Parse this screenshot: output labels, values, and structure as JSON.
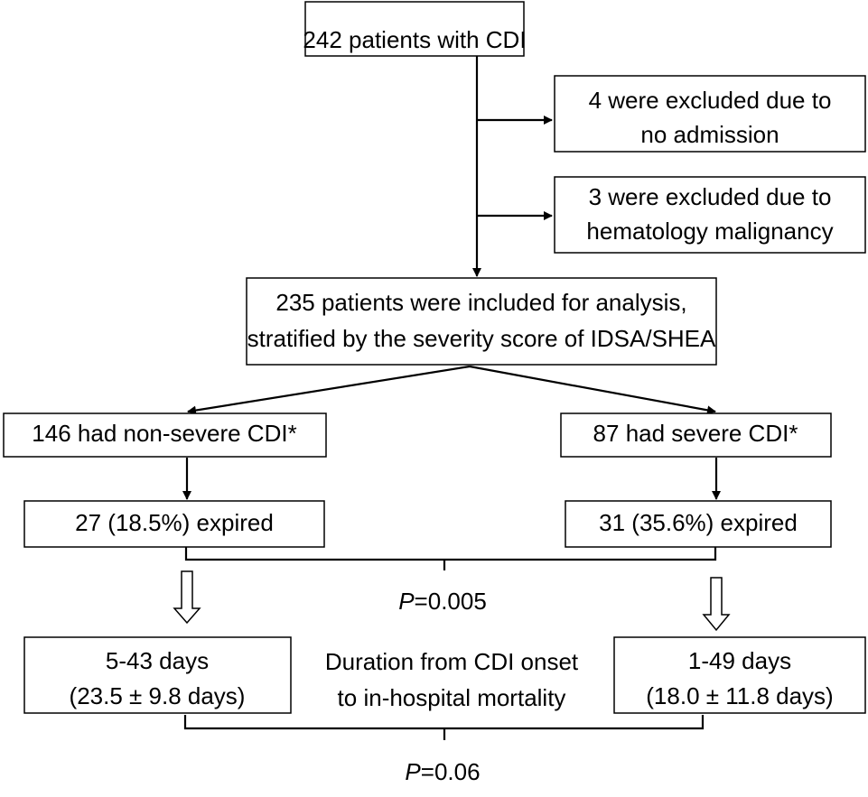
{
  "nodes": {
    "start": {
      "label": "242 patients with CDI"
    },
    "excluded_1": {
      "lines": [
        "4 were excluded due to",
        "no admission"
      ]
    },
    "excluded_2": {
      "lines": [
        "3 were excluded due to",
        "hematology malignancy"
      ]
    },
    "included": {
      "lines": [
        "235 patients were included for analysis,",
        "stratified by the severity score of IDSA/SHEA"
      ]
    },
    "non_severe": {
      "label": "146 had non-severe CDI*"
    },
    "severe": {
      "label": "87 had severe CDI*"
    },
    "non_severe_expired": {
      "label": "27 (18.5%) expired"
    },
    "severe_expired": {
      "label": "31 (35.6%) expired"
    },
    "non_severe_duration": {
      "lines": [
        "5-43 days",
        "(23.5 ± 9.8 days)"
      ]
    },
    "severe_duration": {
      "lines": [
        "1-49 days",
        "(18.0 ± 11.8 days)"
      ]
    }
  },
  "annotations": {
    "mortality_p": {
      "symbol": "P",
      "value": "=0.005"
    },
    "duration_label": {
      "lines": [
        "Duration from CDI onset",
        "to in-hospital mortality"
      ]
    },
    "duration_p": {
      "symbol": "P",
      "value": "=0.06"
    }
  }
}
